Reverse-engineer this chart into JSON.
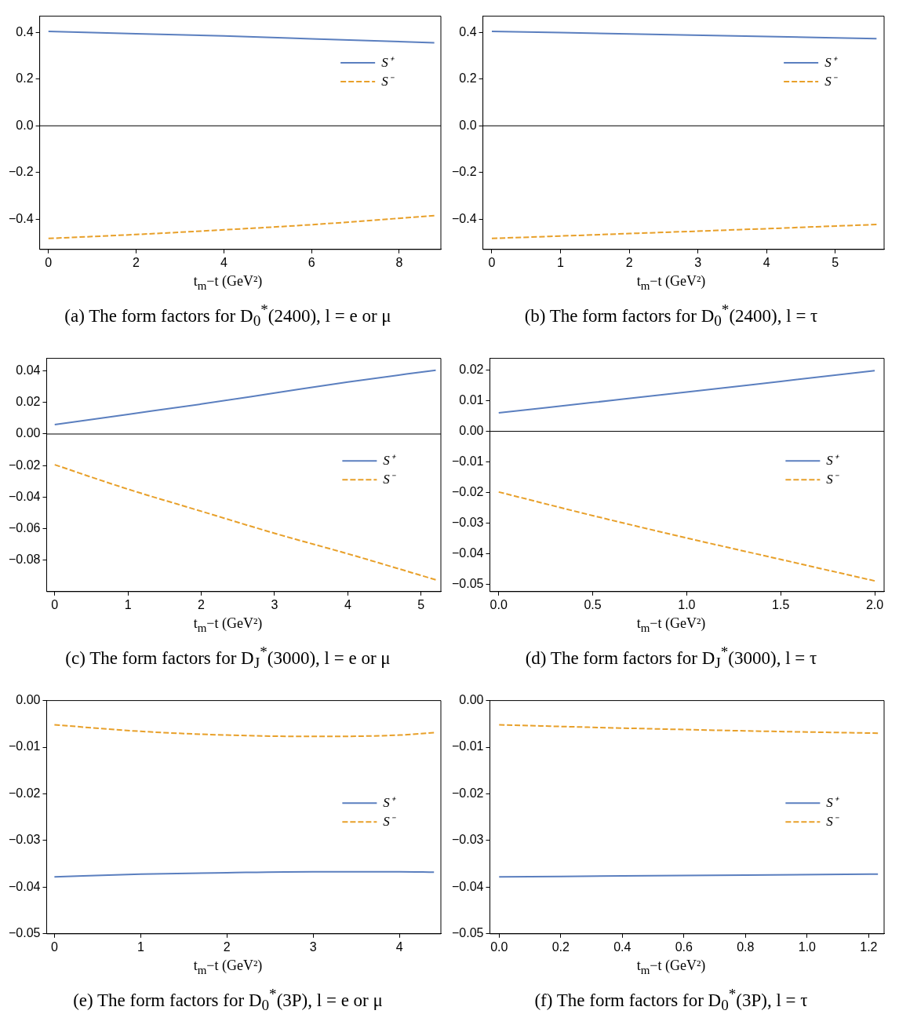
{
  "chart_data": [
    {
      "type": "line",
      "title": "(a) The form factors for D$_{0}$$^{*}$(2400),  l = e or μ",
      "xlabel": "t$_{m}$−t (GeV²)",
      "x": [
        0,
        2,
        4,
        6,
        8.8
      ],
      "xlim": [
        -0.2,
        8.95
      ],
      "xticks": [
        0,
        2,
        4,
        6,
        8
      ],
      "ylim": [
        -0.53,
        0.47
      ],
      "yticks": [
        {
          "value": -0.4,
          "label": "−0.4"
        },
        {
          "value": -0.2,
          "label": "−0.2"
        },
        {
          "value": 0,
          "label": "0.0"
        },
        0.2,
        0.4
      ],
      "legend": "top right",
      "marker": "none",
      "ref_lines": [
        {
          "axis": "y",
          "value": 0,
          "color": "#000000"
        }
      ],
      "series": [
        {
          "name": "S⁺",
          "color": "#5b7fbf",
          "line_style": "solid",
          "values": [
            0.405,
            0.395,
            0.385,
            0.373,
            0.356
          ]
        },
        {
          "name": "S⁻",
          "color": "#e8a02a",
          "line_style": "dashed",
          "values": [
            -0.483,
            -0.466,
            -0.446,
            -0.424,
            -0.385
          ]
        }
      ]
    },
    {
      "type": "line",
      "title": "(b) The form factors for D$_{0}$$^{*}$(2400),  l = τ",
      "xlabel": "t$_{m}$−t (GeV²)",
      "x": [
        0,
        2,
        4,
        5.6
      ],
      "xlim": [
        -0.13,
        5.71
      ],
      "xticks": [
        0,
        1,
        2,
        3,
        4,
        5
      ],
      "ylim": [
        -0.53,
        0.47
      ],
      "yticks": [
        {
          "value": -0.4,
          "label": "−0.4"
        },
        {
          "value": -0.2,
          "label": "−0.2"
        },
        {
          "value": 0,
          "label": "0.0"
        },
        0.2,
        0.4
      ],
      "legend": "top right",
      "marker": "none",
      "ref_lines": [
        {
          "axis": "y",
          "value": 0,
          "color": "#000000"
        }
      ],
      "series": [
        {
          "name": "S⁺",
          "color": "#5b7fbf",
          "line_style": "solid",
          "values": [
            0.405,
            0.394,
            0.383,
            0.374
          ]
        },
        {
          "name": "S⁻",
          "color": "#e8a02a",
          "line_style": "dashed",
          "values": [
            -0.483,
            -0.462,
            -0.441,
            -0.423
          ]
        }
      ]
    },
    {
      "type": "line",
      "title": "(c) The form factors for D$_{J}$$^{*}$(3000),  l = e or μ",
      "xlabel": "t$_{m}$−t (GeV²)",
      "x": [
        0,
        1,
        2,
        3,
        4,
        5.2
      ],
      "xlim": [
        -0.11,
        5.27
      ],
      "xticks": [
        0,
        1,
        2,
        3,
        4,
        5
      ],
      "ylim": [
        -0.1,
        0.048
      ],
      "yticks": [
        {
          "value": -0.08,
          "label": "−0.08"
        },
        {
          "value": -0.06,
          "label": "−0.06"
        },
        {
          "value": -0.04,
          "label": "−0.04"
        },
        {
          "value": -0.02,
          "label": "−0.02"
        },
        {
          "value": 0,
          "label": "0.00"
        },
        0.02,
        0.04
      ],
      "legend": "right",
      "marker": "none",
      "ref_lines": [
        {
          "axis": "y",
          "value": 0,
          "color": "#000000"
        }
      ],
      "series": [
        {
          "name": "S⁺",
          "color": "#5b7fbf",
          "line_style": "solid",
          "values": [
            0.006,
            0.0125,
            0.019,
            0.026,
            0.033,
            0.0405
          ]
        },
        {
          "name": "S⁻",
          "color": "#e8a02a",
          "line_style": "dashed",
          "values": [
            -0.0195,
            -0.035,
            -0.049,
            -0.063,
            -0.076,
            -0.0925
          ]
        }
      ]
    },
    {
      "type": "line",
      "title": "(d) The form factors for D$_{J}$$^{*}$(3000),  l = τ",
      "xlabel": "t$_{m}$−t (GeV²)",
      "x": [
        0,
        0.5,
        1,
        1.5,
        2
      ],
      "xlim": [
        -0.047,
        2.05
      ],
      "xticks": [
        {
          "value": 0,
          "label": "0.0"
        },
        0.5,
        {
          "value": 1,
          "label": "1.0"
        },
        1.5,
        {
          "value": 2,
          "label": "2.0"
        }
      ],
      "ylim": [
        -0.0523,
        0.0238
      ],
      "yticks": [
        {
          "value": -0.05,
          "label": "−0.05"
        },
        {
          "value": -0.04,
          "label": "−0.04"
        },
        {
          "value": -0.03,
          "label": "−0.03"
        },
        {
          "value": -0.02,
          "label": "−0.02"
        },
        {
          "value": -0.01,
          "label": "−0.01"
        },
        {
          "value": 0,
          "label": "0.00"
        },
        0.01,
        0.02
      ],
      "legend": "right",
      "marker": "none",
      "ref_lines": [
        {
          "axis": "y",
          "value": 0,
          "color": "#000000"
        }
      ],
      "series": [
        {
          "name": "S⁺",
          "color": "#5b7fbf",
          "line_style": "solid",
          "values": [
            0.006,
            0.0094,
            0.0128,
            0.0163,
            0.0198
          ]
        },
        {
          "name": "S⁻",
          "color": "#e8a02a",
          "line_style": "dashed",
          "values": [
            -0.0198,
            -0.0275,
            -0.0348,
            -0.0418,
            -0.0488
          ]
        }
      ]
    },
    {
      "type": "line",
      "title": "(e) The form factors for D$_{0}$$^{*}$(3P),  l = e or μ",
      "xlabel": "t$_{m}$−t (GeV²)",
      "x": [
        0,
        1,
        2,
        3,
        4,
        4.4
      ],
      "xlim": [
        -0.09,
        4.48
      ],
      "xticks": [
        0,
        1,
        2,
        3,
        4
      ],
      "ylim": [
        -0.05,
        0
      ],
      "yticks": [
        {
          "value": -0.05,
          "label": "−0.05"
        },
        {
          "value": -0.04,
          "label": "−0.04"
        },
        {
          "value": -0.03,
          "label": "−0.03"
        },
        {
          "value": -0.02,
          "label": "−0.02"
        },
        {
          "value": -0.01,
          "label": "−0.01"
        },
        {
          "value": 0,
          "label": "0.00"
        }
      ],
      "legend": "right",
      "marker": "none",
      "series": [
        {
          "name": "S⁺",
          "color": "#5b7fbf",
          "line_style": "solid",
          "values": [
            -0.0378,
            -0.0372,
            -0.0369,
            -0.0367,
            -0.0367,
            -0.0368
          ]
        },
        {
          "name": "S⁻",
          "color": "#e8a02a",
          "line_style": "dashed",
          "values": [
            -0.0052,
            -0.0066,
            -0.0074,
            -0.0077,
            -0.0074,
            -0.0069
          ]
        }
      ]
    },
    {
      "type": "line",
      "title": "(f) The form factors for D$_{0}$$^{*}$(3P),  l = τ",
      "xlabel": "t$_{m}$−t (GeV²)",
      "x": [
        0,
        0.4,
        0.8,
        1.23
      ],
      "xlim": [
        -0.03,
        1.25
      ],
      "xticks": [
        {
          "value": 0,
          "label": "0.0"
        },
        0.2,
        0.4,
        0.6,
        0.8,
        {
          "value": 1,
          "label": "1.0"
        },
        1.2
      ],
      "ylim": [
        -0.05,
        0
      ],
      "yticks": [
        {
          "value": -0.05,
          "label": "−0.05"
        },
        {
          "value": -0.04,
          "label": "−0.04"
        },
        {
          "value": -0.03,
          "label": "−0.03"
        },
        {
          "value": -0.02,
          "label": "−0.02"
        },
        {
          "value": -0.01,
          "label": "−0.01"
        },
        {
          "value": 0,
          "label": "0.00"
        }
      ],
      "legend": "right",
      "marker": "none",
      "series": [
        {
          "name": "S⁺",
          "color": "#5b7fbf",
          "line_style": "solid",
          "values": [
            -0.0378,
            -0.0376,
            -0.0374,
            -0.0372
          ]
        },
        {
          "name": "S⁻",
          "color": "#e8a02a",
          "line_style": "dashed",
          "values": [
            -0.0052,
            -0.0059,
            -0.0065,
            -0.007
          ]
        }
      ]
    }
  ]
}
